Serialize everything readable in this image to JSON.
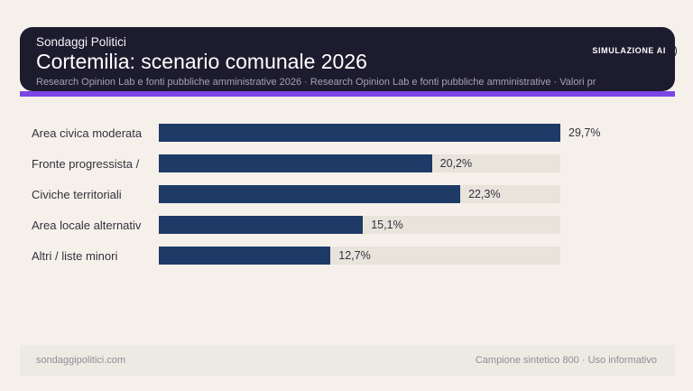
{
  "badge": {
    "label": "SIMULAZIONE AI"
  },
  "header": {
    "kicker": "Sondaggi Politici",
    "title": "Cortemilia: scenario comunale 2026",
    "subtitle": "Research Opinion Lab e fonti pubbliche amministrative 2026 · Research Opinion Lab e fonti pubbliche amministrative · Valori pr"
  },
  "chart_data": {
    "type": "bar",
    "orientation": "horizontal",
    "title": "Cortemilia: scenario comunale 2026",
    "categories": [
      "Area civica moderata",
      "Fronte progressista /",
      "Civiche territoriali",
      "Area locale alternativ",
      "Altri / liste minori"
    ],
    "values": [
      29.7,
      20.2,
      22.3,
      15.1,
      12.7
    ],
    "value_labels": [
      "29,7%",
      "20,2%",
      "22,3%",
      "15,1%",
      "12,7%"
    ],
    "unit": "%",
    "xlim": [
      0,
      29.7
    ],
    "grid": false,
    "legend": false
  },
  "footer": {
    "left": "sondaggipolitici.com",
    "right": "Campione sintetico 800 · Uso informativo"
  },
  "colors": {
    "page-bg": "#f5f1ea",
    "card-bg": "#1d1b2e",
    "accent": "#7c45e6",
    "bar": "#1e3a66",
    "track": "#e8e4dc",
    "footer-bg": "#edeae3",
    "title-text": "#ffffff",
    "subtitle-text": "#a5a3b2",
    "label-text": "#32313e",
    "footer-text": "#8e8d96"
  }
}
